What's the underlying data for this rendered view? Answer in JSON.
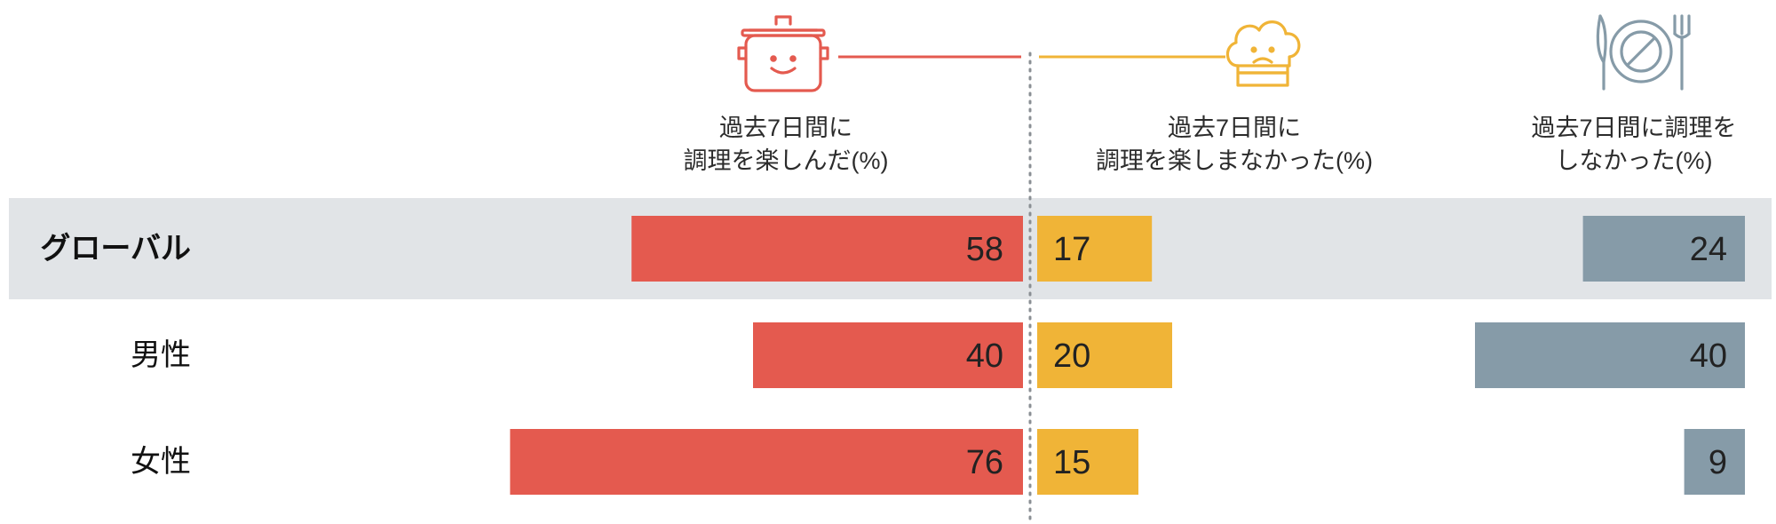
{
  "chart_data": {
    "type": "bar",
    "categories": [
      "グローバル",
      "男性",
      "女性"
    ],
    "series": [
      {
        "name": "過去7日間に 調理を楽しんだ(%)",
        "label_lines": [
          "過去7日間に",
          "調理を楽しんだ(%)"
        ],
        "values": [
          58,
          40,
          76
        ],
        "color": "#e45a4f",
        "direction": "left"
      },
      {
        "name": "過去7日間に 調理を楽しまなかった(%)",
        "label_lines": [
          "過去7日間に",
          "調理を楽しまなかった(%)"
        ],
        "values": [
          17,
          20,
          15
        ],
        "color": "#f0b437",
        "direction": "right"
      },
      {
        "name": "過去7日間に調理を しなかった(%)",
        "label_lines": [
          "過去7日間に調理を",
          "しなかった(%)"
        ],
        "values": [
          24,
          40,
          9
        ],
        "color": "#869ba8",
        "direction": "left"
      }
    ],
    "highlight_category": "グローバル",
    "highlight_color": "#e1e4e7",
    "icons": [
      "happy-pot-icon",
      "sad-chef-hat-icon",
      "plate-cutlery-prohibited-icon"
    ]
  }
}
